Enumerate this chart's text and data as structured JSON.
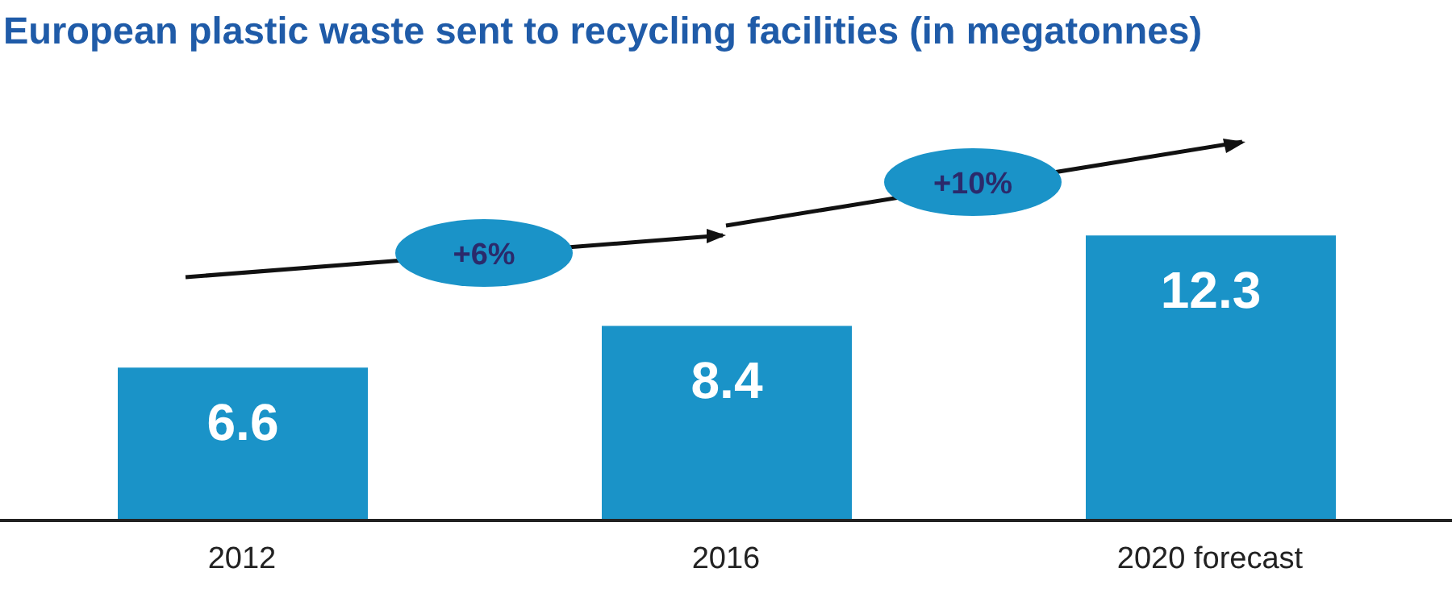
{
  "chart_data": {
    "type": "bar",
    "title": "European plastic waste sent to recycling facilities (in megatonnes)",
    "categories": [
      "2012",
      "2016",
      "2020 forecast"
    ],
    "values": [
      6.6,
      8.4,
      12.3
    ],
    "color": "#1a93c8",
    "data_labels": true,
    "annotations": [
      "+6%",
      "+10%"
    ]
  }
}
